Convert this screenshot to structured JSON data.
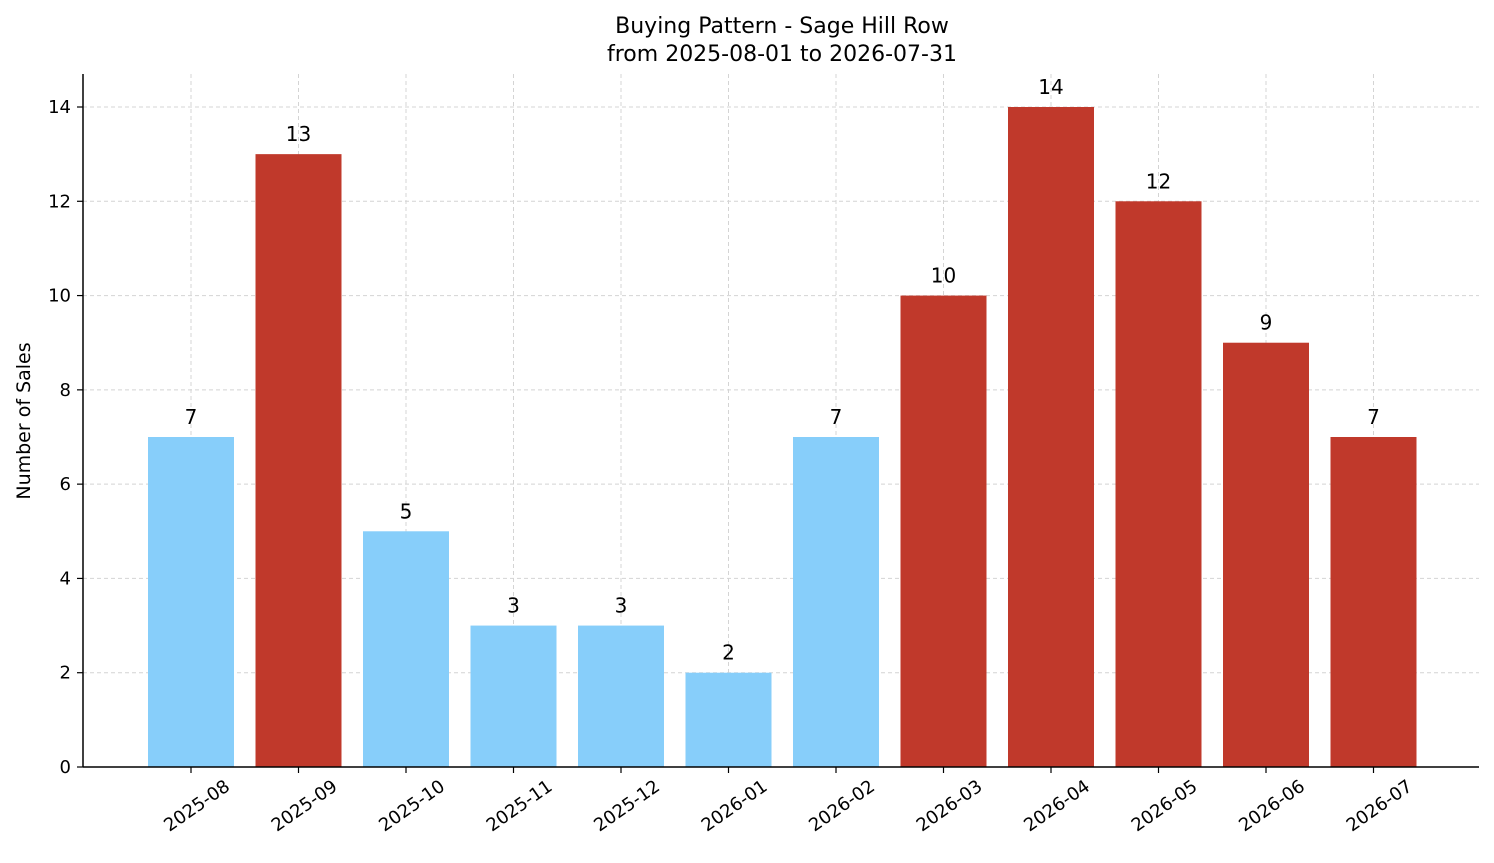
{
  "chart_data": {
    "type": "bar",
    "title": "Buying Pattern - Sage Hill Row",
    "subtitle": "from 2025-08-01 to 2026-07-31",
    "xlabel": "",
    "ylabel": "Number of Sales",
    "categories": [
      "2025-08",
      "2025-09",
      "2025-10",
      "2025-11",
      "2025-12",
      "2026-01",
      "2026-02",
      "2026-03",
      "2026-04",
      "2026-05",
      "2026-06",
      "2026-07"
    ],
    "values": [
      7,
      13,
      5,
      3,
      3,
      2,
      7,
      10,
      14,
      12,
      9,
      7
    ],
    "bar_colors": [
      "#87CEFA",
      "#C0392B",
      "#87CEFA",
      "#87CEFA",
      "#87CEFA",
      "#87CEFA",
      "#87CEFA",
      "#C0392B",
      "#C0392B",
      "#C0392B",
      "#C0392B",
      "#C0392B"
    ],
    "ylim": [
      0,
      14.7
    ],
    "yticks": [
      0,
      2,
      4,
      6,
      8,
      10,
      12,
      14
    ],
    "grid": true,
    "legend": "none"
  }
}
